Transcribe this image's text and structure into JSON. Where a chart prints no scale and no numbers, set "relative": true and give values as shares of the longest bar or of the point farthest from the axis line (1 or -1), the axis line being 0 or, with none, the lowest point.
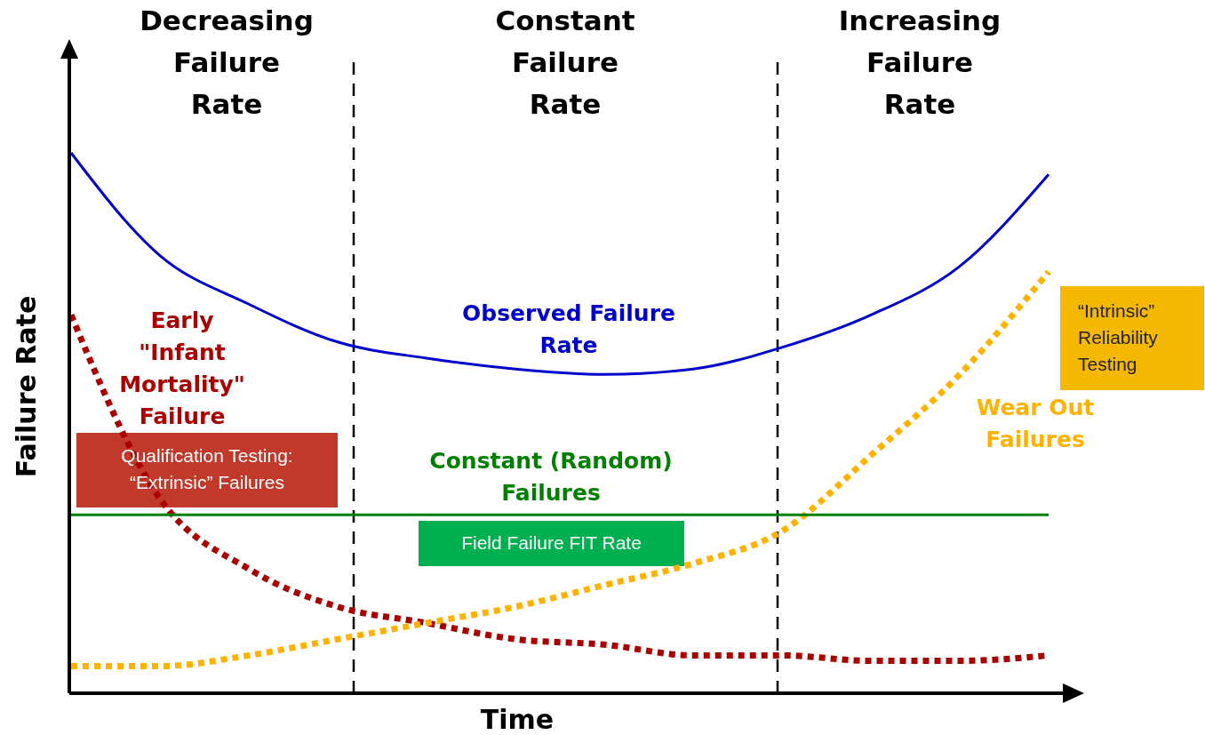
{
  "chart_data": {
    "type": "line",
    "relative": true,
    "xlabel": "Time",
    "ylabel": "Failure Rate",
    "categories": [
      null,
      null,
      null,
      null,
      null,
      null,
      null,
      null,
      null,
      null,
      null,
      null
    ],
    "series": [
      {
        "name": "Observed Failure\nRate",
        "color": "#0000cc",
        "line_style": "solid",
        "values": [
          1.0,
          0.81,
          0.72,
          0.65,
          0.62,
          0.6,
          0.59,
          0.6,
          0.64,
          0.7,
          0.79,
          0.96
        ]
      },
      {
        "name": "Early\n\"Infant\nMortality\"\nFailure",
        "color": "#aa0000",
        "line_style": "dotted",
        "values": [
          0.7,
          0.36,
          0.23,
          0.16,
          0.13,
          0.1,
          0.09,
          0.07,
          0.07,
          0.06,
          0.06,
          0.07
        ]
      },
      {
        "name": "Wear Out\nFailures",
        "color": "#ffb300",
        "line_style": "dotted",
        "values": [
          0.05,
          0.05,
          0.07,
          0.1,
          0.13,
          0.16,
          0.2,
          0.24,
          0.3,
          0.44,
          0.59,
          0.78
        ]
      },
      {
        "name": "Constant (Random)\nFailures",
        "color": "#008000",
        "line_style": "solid",
        "values": [
          0.33,
          0.33,
          0.33,
          0.33,
          0.33,
          0.33,
          0.33,
          0.33,
          0.33,
          0.33,
          0.33,
          0.33
        ]
      }
    ],
    "annotations": [
      "Decreasing\nFailure\nRate",
      "Constant\nFailure\nRate",
      "Increasing\nFailure\nRate",
      "Qualification Testing:\n“Extrinsic” Failures",
      "Field Failure FIT Rate",
      "“Intrinsic”\nReliability\nTesting"
    ],
    "grid": false
  }
}
